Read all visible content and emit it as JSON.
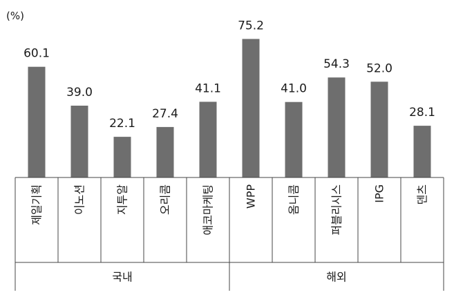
{
  "chart_data": {
    "type": "bar",
    "unit_label": "(%)",
    "categories": [
      "제일기획",
      "이노션",
      "지투알",
      "오리콤",
      "애코마케팅",
      "WPP",
      "옴니콤",
      "퍼블리시스",
      "IPG",
      "덴츠"
    ],
    "values": [
      60.1,
      39.0,
      22.1,
      27.4,
      41.1,
      75.2,
      41.0,
      54.3,
      52.0,
      28.1
    ],
    "value_labels": [
      "60.1",
      "39.0",
      "22.1",
      "27.4",
      "41.1",
      "75.2",
      "41.0",
      "54.3",
      "52.0",
      "28.1"
    ],
    "groups": [
      {
        "label": "국내",
        "count": 5
      },
      {
        "label": "해외",
        "count": 5
      }
    ],
    "ylim": [
      0,
      80
    ],
    "bar_color": "#6e6e6e",
    "grid": false,
    "legend": "none"
  }
}
